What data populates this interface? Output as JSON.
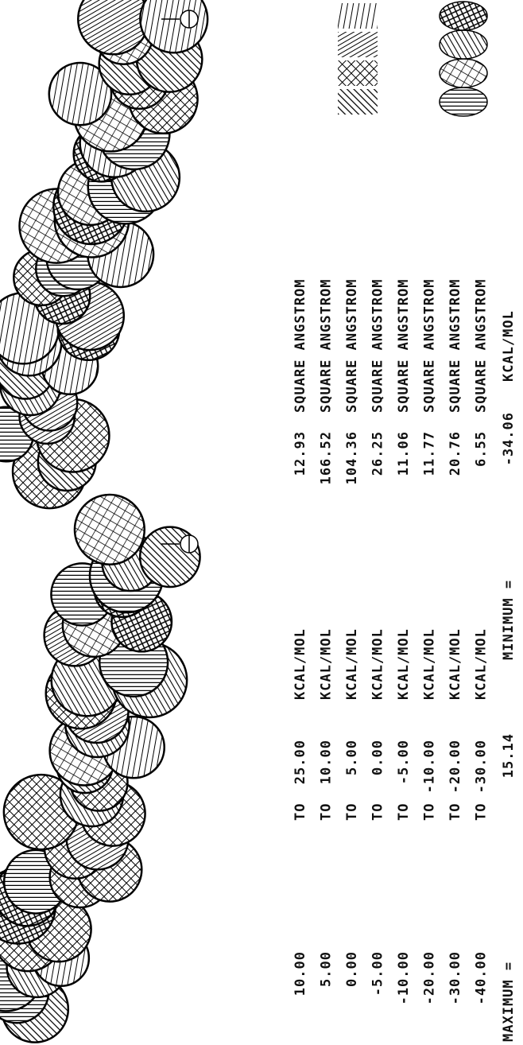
{
  "legend": {
    "to_label": "TO",
    "energy_unit": "KCAL/MOL",
    "area_unit": "SQUARE ANGSTROM",
    "rows": [
      {
        "from": "10.00",
        "to": "25.00",
        "area": "12.93"
      },
      {
        "from": "5.00",
        "to": "10.00",
        "area": "166.52"
      },
      {
        "from": "0.00",
        "to": "5.00",
        "area": "104.36"
      },
      {
        "from": "-5.00",
        "to": "0.00",
        "area": "26.25"
      },
      {
        "from": "-10.00",
        "to": "-5.00",
        "area": "11.06"
      },
      {
        "from": "-20.00",
        "to": "-10.00",
        "area": "11.77"
      },
      {
        "from": "-30.00",
        "to": "-20.00",
        "area": "20.76"
      },
      {
        "from": "-40.00",
        "to": "-30.00",
        "area": "6.55"
      }
    ]
  },
  "extremes": {
    "maximum_label": "MAXIMUM =",
    "maximum": "15.14",
    "minimum_label": "MINIMUM =",
    "minimum": "-34.06",
    "unit": "KCAL/MOL"
  }
}
